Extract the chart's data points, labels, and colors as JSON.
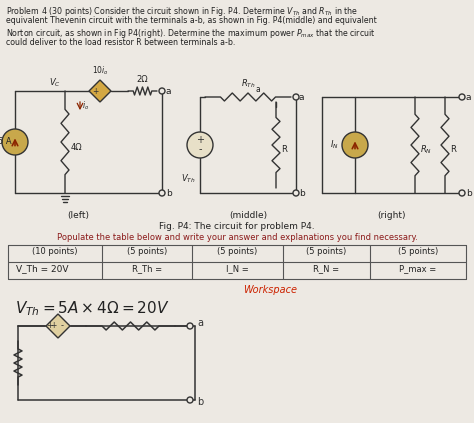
{
  "bg_color": "#ede9e3",
  "text_color": "#222222",
  "red_color": "#8B1A1A",
  "circuit_color": "#333333",
  "source_fill": "#d4a843",
  "source_fill_norton": "#c4722a",
  "table_headers": [
    "(10 points)",
    "(5 points)",
    "(5 points)",
    "(5 points)",
    "(5 points)"
  ],
  "table_row": [
    "V_Th = 20V",
    "R_Th =",
    "I_N =",
    "R_N =",
    "P_max ="
  ]
}
